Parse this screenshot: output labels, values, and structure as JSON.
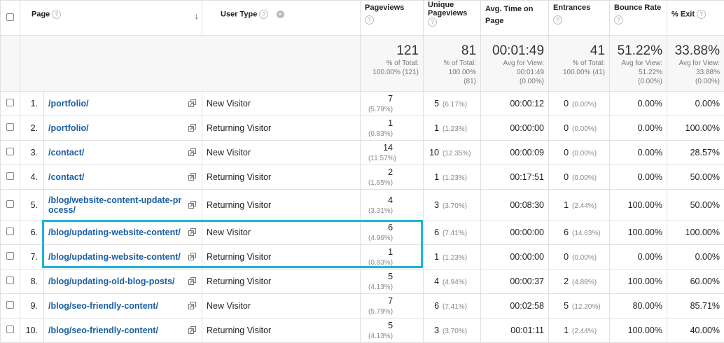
{
  "columns": {
    "page": "Page",
    "user_type": "User Type",
    "pageviews": "Pageviews",
    "unique_pageviews": "Unique Pageviews",
    "avg_time": "Avg. Time on Page",
    "entrances": "Entrances",
    "bounce_rate": "Bounce Rate",
    "exit": "% Exit"
  },
  "totals": {
    "pageviews": {
      "value": "121",
      "l1": "% of Total:",
      "l2": "100.00% (121)",
      "l3": ""
    },
    "unique_pageviews": {
      "value": "81",
      "l1": "% of Total:",
      "l2": "100.00%",
      "l3": "(81)"
    },
    "avg_time": {
      "value": "00:01:49",
      "l1": "Avg for View:",
      "l2": "00:01:49",
      "l3": "(0.00%)"
    },
    "entrances": {
      "value": "41",
      "l1": "% of Total:",
      "l2": "100.00% (41)",
      "l3": ""
    },
    "bounce_rate": {
      "value": "51.22%",
      "l1": "Avg for View:",
      "l2": "51.22%",
      "l3": "(0.00%)"
    },
    "exit": {
      "value": "33.88%",
      "l1": "Avg for View:",
      "l2": "33.88%",
      "l3": "(0.00%)"
    }
  },
  "rows": [
    {
      "idx": "1.",
      "page": "/portfolio/",
      "user_type": "New Visitor",
      "pv": "7",
      "pv_pct": "(5.79%)",
      "upv": "5",
      "upv_pct": "(6.17%)",
      "time": "00:00:12",
      "ent": "0",
      "ent_pct": "(0.00%)",
      "bounce": "0.00%",
      "exit": "0.00%"
    },
    {
      "idx": "2.",
      "page": "/portfolio/",
      "user_type": "Returning Visitor",
      "pv": "1",
      "pv_pct": "(0.83%)",
      "upv": "1",
      "upv_pct": "(1.23%)",
      "time": "00:00:00",
      "ent": "0",
      "ent_pct": "(0.00%)",
      "bounce": "0.00%",
      "exit": "100.00%"
    },
    {
      "idx": "3.",
      "page": "/contact/",
      "user_type": "New Visitor",
      "pv": "14",
      "pv_pct": "(11.57%)",
      "upv": "10",
      "upv_pct": "(12.35%)",
      "time": "00:00:09",
      "ent": "0",
      "ent_pct": "(0.00%)",
      "bounce": "0.00%",
      "exit": "28.57%"
    },
    {
      "idx": "4.",
      "page": "/contact/",
      "user_type": "Returning Visitor",
      "pv": "2",
      "pv_pct": "(1.65%)",
      "upv": "1",
      "upv_pct": "(1.23%)",
      "time": "00:17:51",
      "ent": "0",
      "ent_pct": "(0.00%)",
      "bounce": "0.00%",
      "exit": "50.00%"
    },
    {
      "idx": "5.",
      "page": "/blog/website-content-update-process/",
      "page_l1": "/blog/website-content-update-pr",
      "page_l2": "ocess/",
      "user_type": "Returning Visitor",
      "pv": "4",
      "pv_pct": "(3.31%)",
      "upv": "3",
      "upv_pct": "(3.70%)",
      "time": "00:08:30",
      "ent": "1",
      "ent_pct": "(2.44%)",
      "bounce": "100.00%",
      "exit": "50.00%"
    },
    {
      "idx": "6.",
      "page": "/blog/updating-website-content/",
      "user_type": "New Visitor",
      "pv": "6",
      "pv_pct": "(4.96%)",
      "upv": "6",
      "upv_pct": "(7.41%)",
      "time": "00:00:00",
      "ent": "6",
      "ent_pct": "(14.63%)",
      "bounce": "100.00%",
      "exit": "100.00%"
    },
    {
      "idx": "7.",
      "page": "/blog/updating-website-content/",
      "user_type": "Returning Visitor",
      "pv": "1",
      "pv_pct": "(0.83%)",
      "upv": "1",
      "upv_pct": "(1.23%)",
      "time": "00:00:00",
      "ent": "0",
      "ent_pct": "(0.00%)",
      "bounce": "0.00%",
      "exit": "0.00%"
    },
    {
      "idx": "8.",
      "page": "/blog/updating-old-blog-posts/",
      "user_type": "Returning Visitor",
      "pv": "5",
      "pv_pct": "(4.13%)",
      "upv": "4",
      "upv_pct": "(4.94%)",
      "time": "00:00:37",
      "ent": "2",
      "ent_pct": "(4.88%)",
      "bounce": "100.00%",
      "exit": "60.00%"
    },
    {
      "idx": "9.",
      "page": "/blog/seo-friendly-content/",
      "user_type": "New Visitor",
      "pv": "7",
      "pv_pct": "(5.79%)",
      "upv": "6",
      "upv_pct": "(7.41%)",
      "time": "00:02:58",
      "ent": "5",
      "ent_pct": "(12.20%)",
      "bounce": "80.00%",
      "exit": "85.71%"
    },
    {
      "idx": "10.",
      "page": "/blog/seo-friendly-content/",
      "user_type": "Returning Visitor",
      "pv": "5",
      "pv_pct": "(4.13%)",
      "upv": "3",
      "upv_pct": "(3.70%)",
      "time": "00:01:11",
      "ent": "1",
      "ent_pct": "(2.44%)",
      "bounce": "100.00%",
      "exit": "40.00%"
    }
  ],
  "icons": {
    "help": "?",
    "remove": "×",
    "sort": "↓",
    "highlight_color": "#1bb6d4",
    "link_color": "#1a5fa3"
  }
}
